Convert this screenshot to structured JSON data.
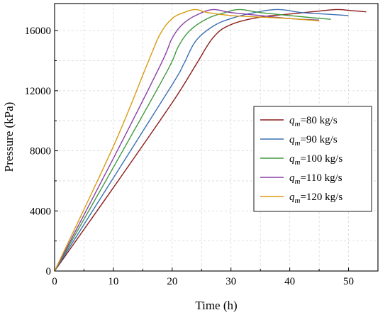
{
  "chart_data": {
    "type": "line",
    "title": "",
    "xlabel": "Time (h)",
    "ylabel": "Pressure (kPa)",
    "xlim": [
      0,
      55
    ],
    "ylim": [
      0,
      17800
    ],
    "xticks": [
      0,
      10,
      20,
      30,
      40,
      50
    ],
    "yticks": [
      0,
      4000,
      8000,
      12000,
      16000
    ],
    "grid": true,
    "legend_position": "center-right",
    "series": [
      {
        "name": "qm=80 kg/s",
        "label_main": "q",
        "label_sub": "m",
        "label_rest": "=80 kg/s",
        "color": "#8b1a1a",
        "points": [
          [
            0,
            0
          ],
          [
            10,
            5550
          ],
          [
            20,
            11200
          ],
          [
            24,
            13700
          ],
          [
            27,
            15550
          ],
          [
            30,
            16400
          ],
          [
            35,
            16900
          ],
          [
            40,
            17100
          ],
          [
            45,
            17300
          ],
          [
            48,
            17400
          ],
          [
            50,
            17350
          ],
          [
            53,
            17250
          ]
        ]
      },
      {
        "name": "qm=90 kg/s",
        "label_main": "q",
        "label_sub": "m",
        "label_rest": "=90 kg/s",
        "color": "#3a6fb4",
        "points": [
          [
            0,
            0
          ],
          [
            10,
            6200
          ],
          [
            20,
            12400
          ],
          [
            22,
            13800
          ],
          [
            24,
            15300
          ],
          [
            27,
            16300
          ],
          [
            30,
            16800
          ],
          [
            34,
            17200
          ],
          [
            38,
            17400
          ],
          [
            42,
            17200
          ],
          [
            46,
            17100
          ],
          [
            50,
            17000
          ]
        ]
      },
      {
        "name": "qm=100 kg/s",
        "label_main": "q",
        "label_sub": "m",
        "label_rest": "=100 kg/s",
        "color": "#3f9a3f",
        "points": [
          [
            0,
            0
          ],
          [
            10,
            6900
          ],
          [
            19,
            13200
          ],
          [
            21,
            14900
          ],
          [
            23,
            16000
          ],
          [
            26,
            16800
          ],
          [
            29,
            17200
          ],
          [
            31.5,
            17400
          ],
          [
            35,
            17200
          ],
          [
            40,
            17000
          ],
          [
            44,
            16850
          ],
          [
            47,
            16750
          ]
        ]
      },
      {
        "name": "qm=110 kg/s",
        "label_main": "q",
        "label_sub": "m",
        "label_rest": "=110 kg/s",
        "color": "#8a3fa8",
        "points": [
          [
            0,
            0
          ],
          [
            10,
            7500
          ],
          [
            18,
            13700
          ],
          [
            20,
            15500
          ],
          [
            22,
            16500
          ],
          [
            24.5,
            17100
          ],
          [
            27,
            17400
          ],
          [
            30,
            17200
          ],
          [
            35,
            17000
          ],
          [
            40,
            16800
          ],
          [
            45,
            16700
          ]
        ]
      },
      {
        "name": "qm=120 kg/s",
        "label_main": "q",
        "label_sub": "m",
        "label_rest": "=120 kg/s",
        "color": "#d89b12",
        "points": [
          [
            0,
            0
          ],
          [
            10,
            8300
          ],
          [
            16,
            14000
          ],
          [
            18,
            15800
          ],
          [
            20,
            16800
          ],
          [
            22,
            17200
          ],
          [
            24,
            17400
          ],
          [
            26,
            17200
          ],
          [
            30,
            17000
          ],
          [
            35,
            16900
          ],
          [
            40,
            16800
          ],
          [
            45,
            16650
          ]
        ]
      }
    ]
  }
}
